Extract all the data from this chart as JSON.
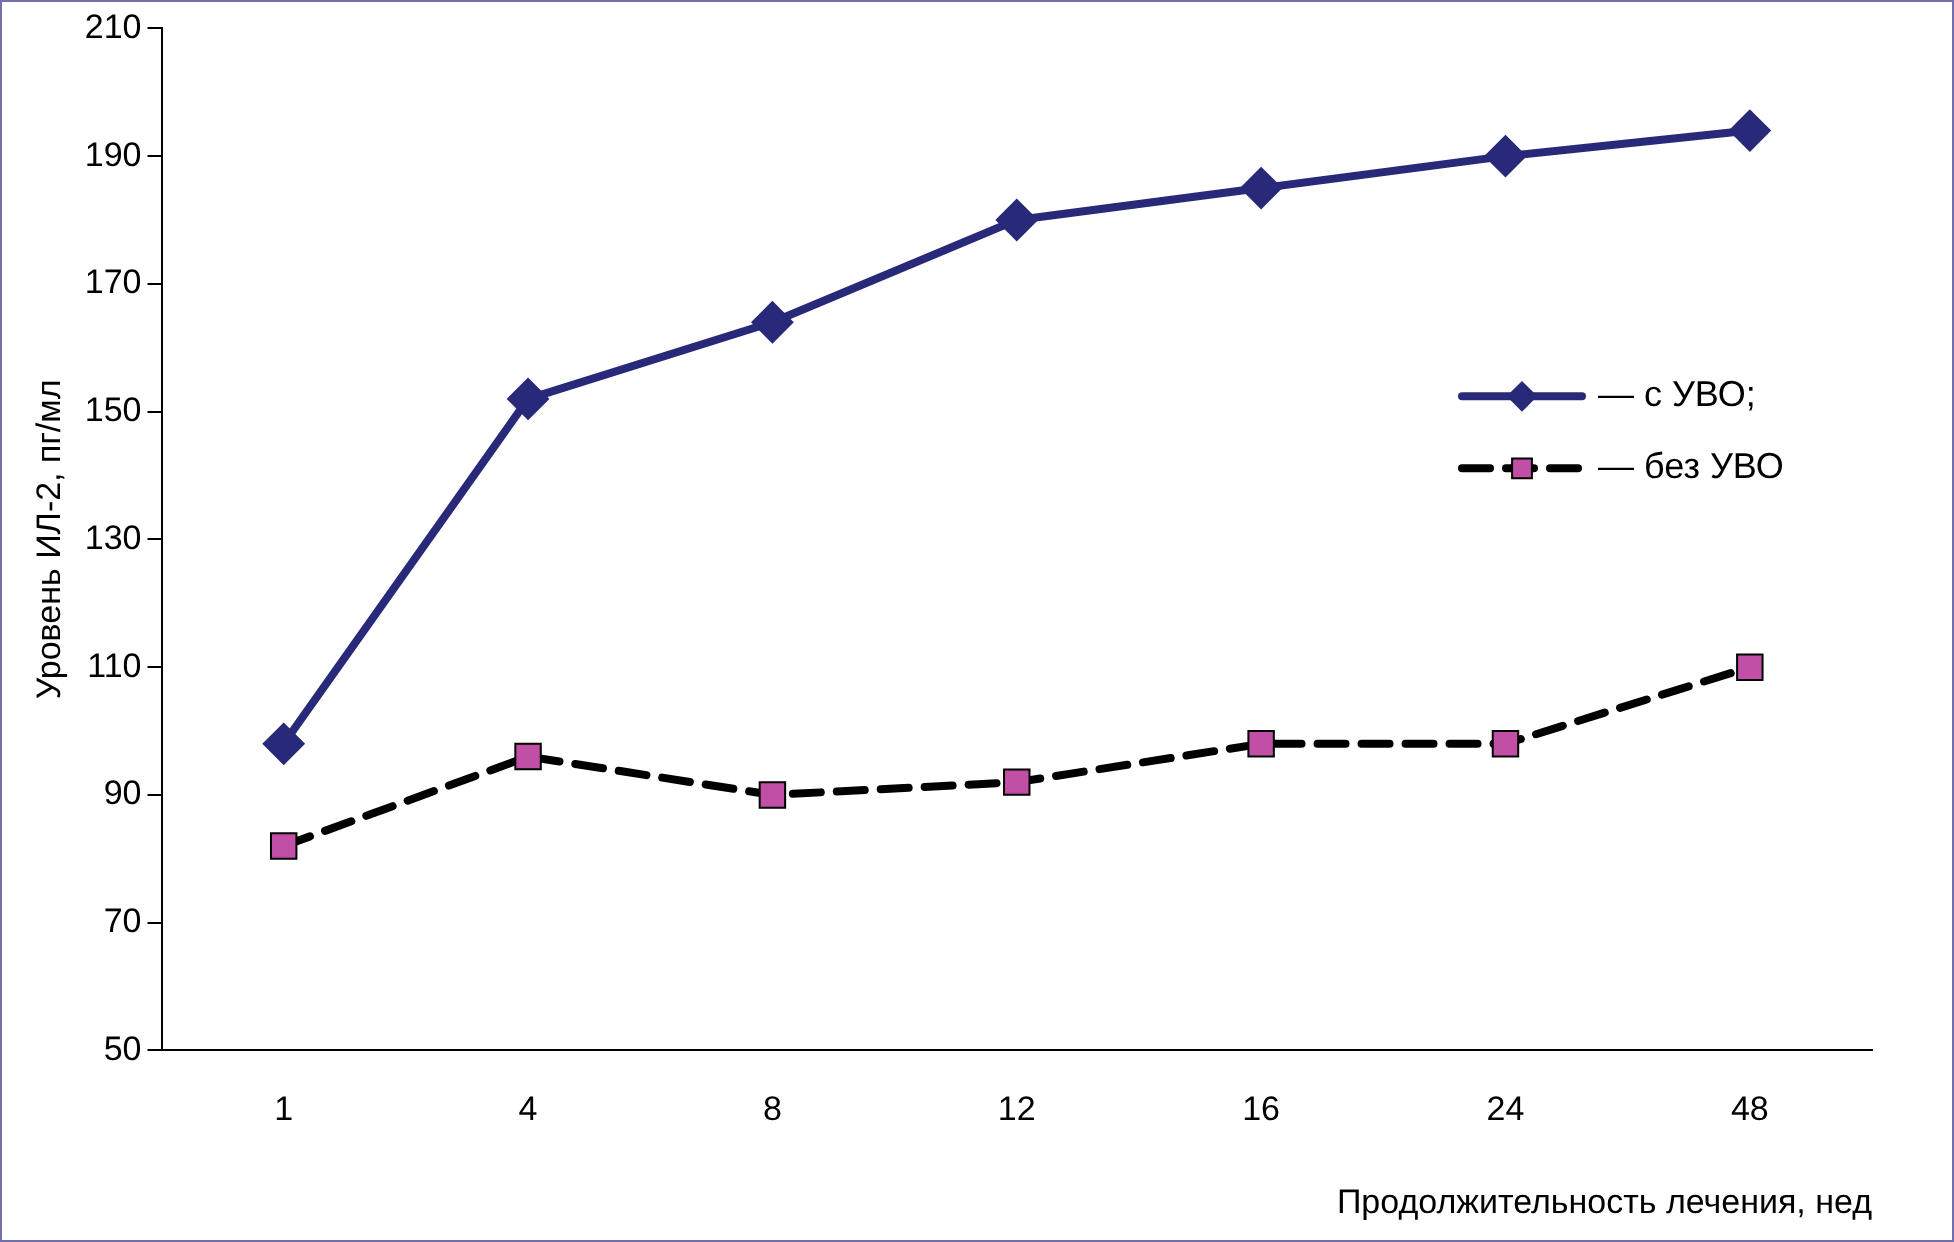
{
  "chart_data": {
    "type": "line",
    "xlabel": "Продолжительность лечения, нед",
    "ylabel": "Уровень ИЛ-2, пг/мл",
    "categories": [
      "1",
      "4",
      "8",
      "12",
      "16",
      "24",
      "48"
    ],
    "series": [
      {
        "name": "— с УВО;",
        "color": "#29297a",
        "values": [
          98,
          152,
          164,
          180,
          185,
          190,
          194
        ],
        "marker": "diamond",
        "line_style": "solid"
      },
      {
        "name": "— без УВО",
        "color": "#000000",
        "colors": [
          "#c04fa5",
          "#c04fa5",
          "#c04fa5",
          "#c04fa5",
          "#c04fa5",
          "#c04fa5",
          "#c04fa5"
        ],
        "values": [
          82,
          96,
          90,
          92,
          98,
          98,
          110
        ],
        "marker": "square",
        "line_style": "dashed"
      }
    ],
    "ylim": [
      50,
      210
    ],
    "yticks": [
      50,
      70,
      90,
      110,
      130,
      150,
      170,
      190,
      210
    ],
    "grid": false,
    "legend": "right"
  }
}
